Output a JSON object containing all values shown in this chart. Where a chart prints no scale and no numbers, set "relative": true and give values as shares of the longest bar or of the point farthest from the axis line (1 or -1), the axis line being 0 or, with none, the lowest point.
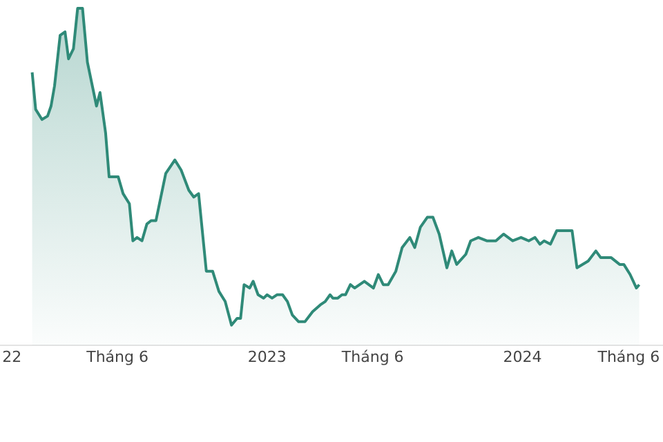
{
  "chart_data": {
    "type": "area",
    "relative": true,
    "color": "#2f8a78",
    "x": [
      "2022-01-30",
      "2022-02-04",
      "2022-02-13",
      "2022-02-21",
      "2022-02-26",
      "2022-03-03",
      "2022-03-11",
      "2022-03-18",
      "2022-03-23",
      "2022-03-30",
      "2022-04-05",
      "2022-04-12",
      "2022-04-19",
      "2022-05-02",
      "2022-05-07",
      "2022-05-15",
      "2022-05-20",
      "2022-06-02",
      "2022-06-09",
      "2022-06-18",
      "2022-06-23",
      "2022-06-29",
      "2022-07-06",
      "2022-07-13",
      "2022-07-19",
      "2022-07-26",
      "2022-08-09",
      "2022-08-22",
      "2022-08-31",
      "2022-09-11",
      "2022-09-18",
      "2022-09-25",
      "2022-10-06",
      "2022-10-15",
      "2022-10-24",
      "2022-11-02",
      "2022-11-11",
      "2022-11-19",
      "2022-11-24",
      "2022-11-29",
      "2022-12-07",
      "2022-12-12",
      "2022-12-19",
      "2022-12-27",
      "2023-01-01",
      "2023-01-08",
      "2023-01-15",
      "2023-01-23",
      "2023-01-30",
      "2023-02-06",
      "2023-02-15",
      "2023-02-24",
      "2023-03-07",
      "2023-03-18",
      "2023-03-25",
      "2023-04-01",
      "2023-04-05",
      "2023-04-12",
      "2023-04-18",
      "2023-04-23",
      "2023-04-30",
      "2023-05-06",
      "2023-05-20",
      "2023-06-02",
      "2023-06-09",
      "2023-06-16",
      "2023-06-23",
      "2023-07-04",
      "2023-07-13",
      "2023-07-24",
      "2023-07-31",
      "2023-08-08",
      "2023-08-18",
      "2023-08-26",
      "2023-09-04",
      "2023-09-15",
      "2023-09-22",
      "2023-09-29",
      "2023-10-12",
      "2023-10-19",
      "2023-10-30",
      "2023-11-11",
      "2023-11-24",
      "2023-12-05",
      "2023-12-18",
      "2023-12-30",
      "2024-01-10",
      "2024-01-19",
      "2024-01-26",
      "2024-02-01",
      "2024-02-10",
      "2024-02-19",
      "2024-03-12",
      "2024-03-19",
      "2024-04-04",
      "2024-04-15",
      "2024-04-22",
      "2024-05-07",
      "2024-05-19",
      "2024-05-25",
      "2024-06-03",
      "2024-06-12",
      "2024-06-16"
    ],
    "values": [
      0.81,
      0.7,
      0.67,
      0.68,
      0.71,
      0.77,
      0.92,
      0.93,
      0.85,
      0.88,
      1,
      1,
      0.84,
      0.71,
      0.75,
      0.63,
      0.5,
      0.5,
      0.45,
      0.42,
      0.31,
      0.32,
      0.31,
      0.36,
      0.37,
      0.37,
      0.51,
      0.55,
      0.52,
      0.46,
      0.44,
      0.45,
      0.22,
      0.22,
      0.16,
      0.13,
      0.06,
      0.08,
      0.08,
      0.18,
      0.17,
      0.19,
      0.15,
      0.14,
      0.15,
      0.14,
      0.15,
      0.15,
      0.13,
      0.09,
      0.07,
      0.07,
      0.1,
      0.12,
      0.13,
      0.15,
      0.14,
      0.14,
      0.15,
      0.15,
      0.18,
      0.17,
      0.19,
      0.17,
      0.21,
      0.18,
      0.18,
      0.22,
      0.29,
      0.32,
      0.29,
      0.35,
      0.38,
      0.38,
      0.33,
      0.23,
      0.28,
      0.24,
      0.27,
      0.31,
      0.32,
      0.31,
      0.31,
      0.33,
      0.31,
      0.32,
      0.31,
      0.32,
      0.3,
      0.31,
      0.3,
      0.34,
      0.34,
      0.23,
      0.25,
      0.28,
      0.26,
      0.26,
      0.24,
      0.24,
      0.21,
      0.17,
      0.18
    ],
    "xlim": [
      "2021-12-15",
      "2024-07-20"
    ],
    "xticks": [
      {
        "value": "2022-01-01",
        "label": "22"
      },
      {
        "value": "2022-06-01",
        "label": "Tháng 6"
      },
      {
        "value": "2023-01-01",
        "label": "2023"
      },
      {
        "value": "2023-06-01",
        "label": "Tháng 6"
      },
      {
        "value": "2024-01-01",
        "label": "2024"
      },
      {
        "value": "2024-06-01",
        "label": "Tháng 6"
      }
    ],
    "line_style": "solid"
  }
}
